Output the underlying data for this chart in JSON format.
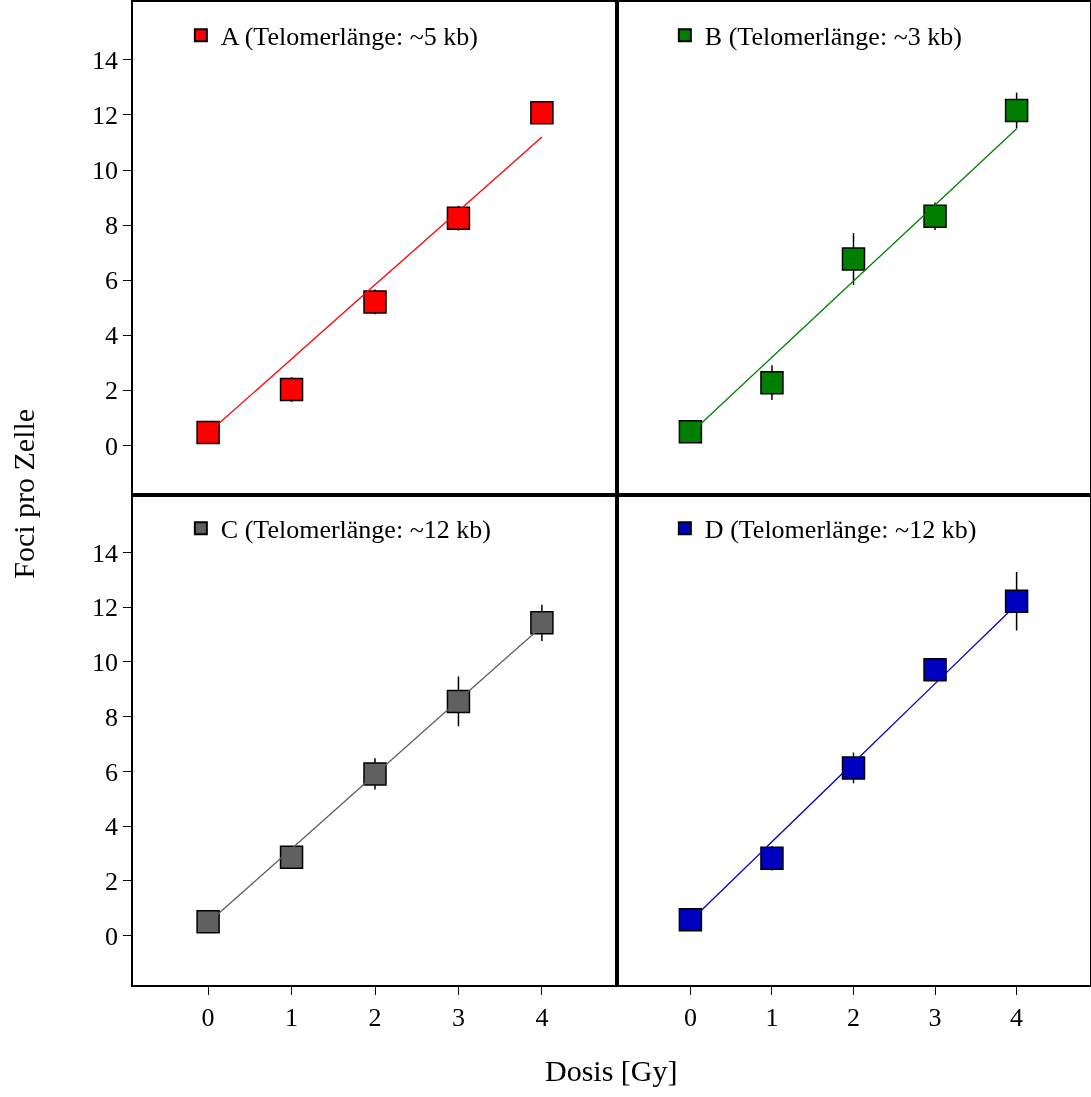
{
  "chart_data": [
    {
      "type": "scatter",
      "ylabel": "Foci pro Zelle",
      "x": [
        0,
        1,
        2,
        3,
        4
      ],
      "xlim": [
        -0.9,
        4.9
      ],
      "xticks": [
        0,
        1,
        2,
        3,
        4
      ],
      "ylim": [
        -1.8,
        16.1
      ],
      "yticks": [
        0,
        2,
        4,
        6,
        8,
        10,
        12,
        14
      ],
      "tick_labels": "y",
      "legend": "top",
      "grid": false,
      "series": [
        {
          "name": "A (Telomerlänge: ~5 kb)",
          "color": "#ff0000",
          "marker": "square",
          "values": [
            0.47,
            2.03,
            5.21,
            8.25,
            12.08
          ],
          "errors": [
            null,
            0.45,
            0.45,
            0.45,
            null
          ]
        },
        {
          "type": "line",
          "color": "#ff0000",
          "marker": "none",
          "values": [
            0.45,
            3.14,
            5.83,
            8.51,
            11.2
          ]
        }
      ]
    },
    {
      "type": "scatter",
      "x": [
        0,
        1,
        2,
        3,
        4
      ],
      "xlim": [
        -0.9,
        4.9
      ],
      "xticks": [
        0,
        1,
        2,
        3,
        4
      ],
      "ylim": [
        -1.8,
        16.1
      ],
      "yticks": [
        0,
        2,
        4,
        6,
        8,
        10,
        12,
        14
      ],
      "tick_labels": false,
      "legend": "top",
      "grid": false,
      "series": [
        {
          "name": "B (Telomerlänge: ~3 kb)",
          "color": "#008000",
          "marker": "square",
          "values": [
            0.5,
            2.28,
            6.77,
            8.32,
            12.16
          ],
          "errors": [
            null,
            0.63,
            0.94,
            0.5,
            0.65
          ]
        },
        {
          "type": "line",
          "color": "#008000",
          "marker": "none",
          "values": [
            0.43,
            3.2,
            5.97,
            8.73,
            11.5
          ]
        }
      ]
    },
    {
      "type": "scatter",
      "xlabel": "Dosis [Gy]",
      "x": [
        0,
        1,
        2,
        3,
        4
      ],
      "xlim": [
        -0.9,
        4.9
      ],
      "xticks": [
        0,
        1,
        2,
        3,
        4
      ],
      "ylim": [
        -1.8,
        16.1
      ],
      "yticks": [
        0,
        2,
        4,
        6,
        8,
        10,
        12,
        14
      ],
      "legend": "top",
      "grid": false,
      "series": [
        {
          "name": "C (Telomerlänge: ~12 kb)",
          "color": "#606060",
          "marker": "square",
          "values": [
            0.51,
            2.87,
            5.91,
            8.56,
            11.43
          ],
          "errors": [
            null,
            0.35,
            0.57,
            0.91,
            0.66
          ]
        },
        {
          "type": "line",
          "color": "#606060",
          "marker": "none",
          "values": [
            0.47,
            3.18,
            5.89,
            8.6,
            11.3
          ]
        }
      ]
    },
    {
      "type": "scatter",
      "x": [
        0,
        1,
        2,
        3,
        4
      ],
      "xlim": [
        -0.9,
        4.9
      ],
      "xticks": [
        0,
        1,
        2,
        3,
        4
      ],
      "ylim": [
        -1.8,
        16.1
      ],
      "yticks": [
        0,
        2,
        4,
        6,
        8,
        10,
        12,
        14
      ],
      "tick_labels": "x",
      "legend": "top",
      "grid": false,
      "series": [
        {
          "name": "D (Telomerlänge: ~12 kb)",
          "color": "#0000c0",
          "marker": "square",
          "values": [
            0.58,
            2.83,
            6.13,
            9.72,
            12.22
          ],
          "errors": [
            null,
            0.45,
            0.56,
            0.4,
            1.07
          ]
        },
        {
          "type": "line",
          "color": "#0000c0",
          "marker": "none",
          "values": [
            0.54,
            3.43,
            6.32,
            9.21,
            12.1
          ]
        }
      ]
    }
  ]
}
